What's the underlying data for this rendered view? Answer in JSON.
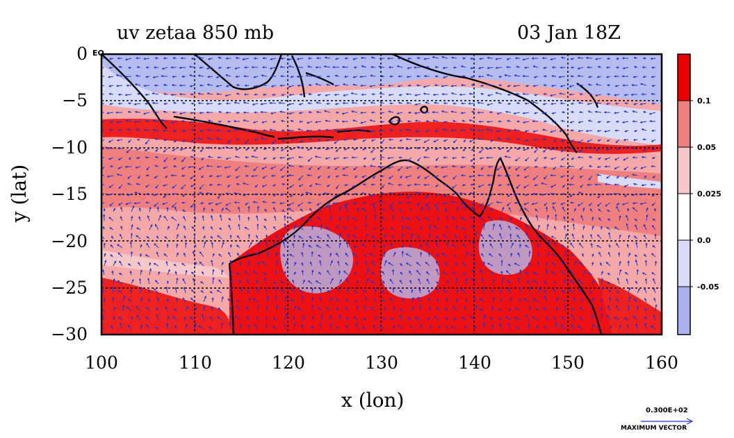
{
  "title": {
    "left": "uv zetaa 850 mb",
    "right": "03 Jan 18Z"
  },
  "axes": {
    "xlabel": "x (lon)",
    "ylabel": "y (lat)",
    "x_ticks": [
      "100",
      "110",
      "120",
      "130",
      "140",
      "150",
      "160"
    ],
    "y_ticks": [
      "0",
      "−5",
      "−10",
      "−15",
      "−20",
      "−25",
      "−30"
    ],
    "eq_label": "EQ",
    "xlim": [
      100,
      160
    ],
    "ylim": [
      -30,
      0
    ]
  },
  "colorbar": {
    "labels": [
      "0.1",
      "0.05",
      "0.025",
      "0.0",
      "-0.05"
    ],
    "colors": [
      "#ee0000",
      "#f08080",
      "#f7c8c8",
      "#ffffff",
      "#d8dcf8",
      "#a8b0ee"
    ]
  },
  "vector_legend": {
    "value": "0.300E+02",
    "caption": "MAXIMUM VECTOR"
  },
  "colors": {
    "coast": "#000000",
    "vectors": "#2233cc",
    "grid": "#000000"
  }
}
